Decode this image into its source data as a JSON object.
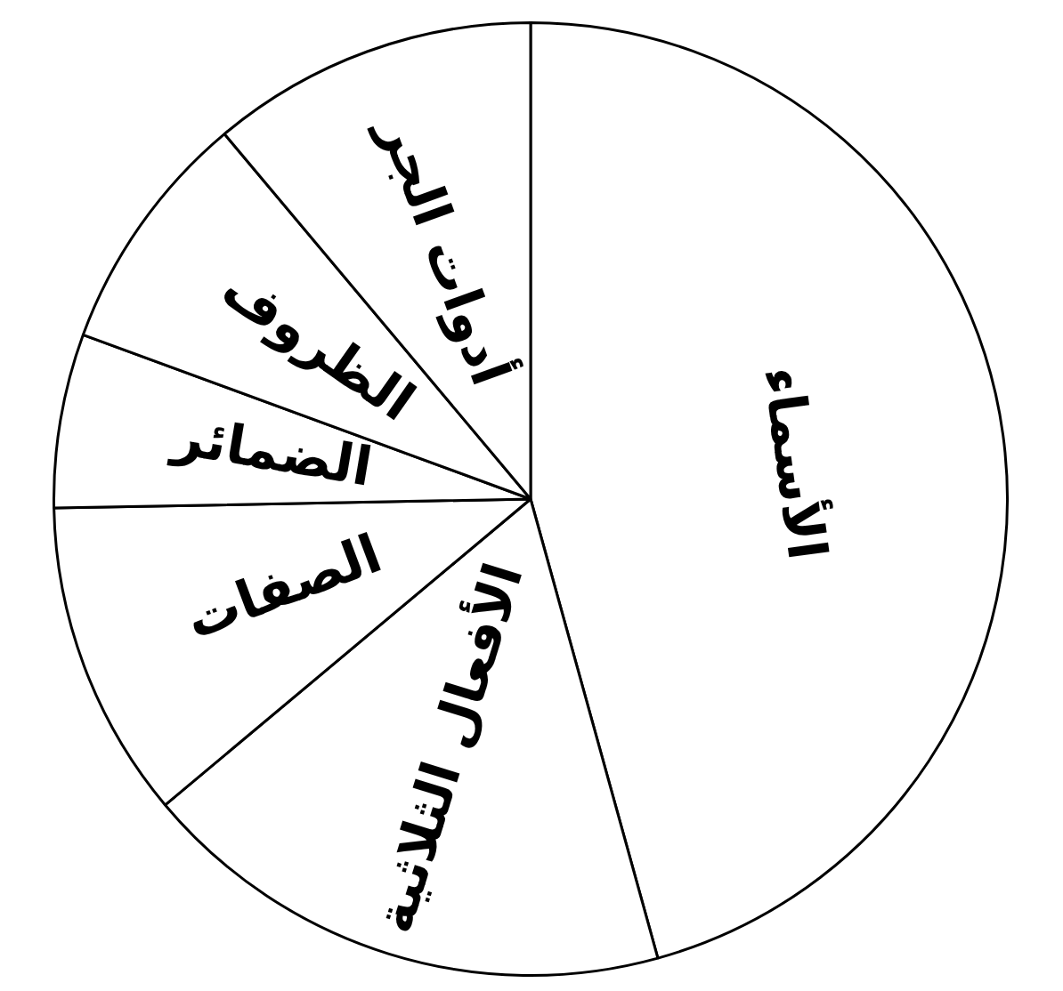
{
  "chart_data": {
    "type": "pie",
    "categories": [
      "الأسماء",
      "الأفعال الثلاثية",
      "الصفات",
      "الضمائر",
      "الظروف",
      "أدوات الجر"
    ],
    "values": [
      45.7,
      18.2,
      10.8,
      5.9,
      8.3,
      11.1
    ],
    "colors": [
      "#ffffff",
      "#ffffff",
      "#ffffff",
      "#ffffff",
      "#ffffff",
      "#ffffff"
    ],
    "legend": false
  }
}
